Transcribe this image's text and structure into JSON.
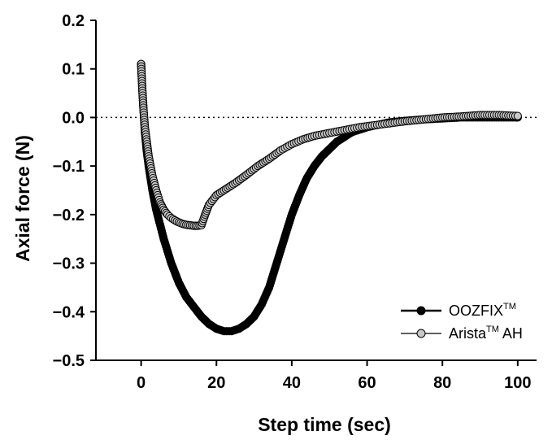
{
  "chart_data": {
    "type": "scatter",
    "title": "",
    "xlabel": "Step time (sec)",
    "ylabel": "Axial force (N)",
    "xlim": [
      -12,
      105
    ],
    "ylim": [
      -0.5,
      0.2
    ],
    "xticks": [
      0,
      20,
      40,
      60,
      80,
      100
    ],
    "yticks": [
      0.2,
      0.1,
      0.0,
      -0.1,
      -0.2,
      -0.3,
      -0.4,
      -0.5
    ],
    "xtick_labels": [
      "0",
      "20",
      "40",
      "60",
      "80",
      "100"
    ],
    "ytick_labels": [
      "0.2",
      "0.1",
      "0.0",
      "−0.1",
      "−0.2",
      "−0.3",
      "−0.4",
      "−0.5"
    ],
    "grid": false,
    "reference_line": {
      "y": 0.0,
      "style": "dotted"
    },
    "legend": {
      "placement": "bottom-right"
    },
    "series": [
      {
        "name": "OOZFIX",
        "name_sup": "TM",
        "name_suffix": "",
        "marker_fill": "#000000",
        "points": [
          [
            0,
            0.11
          ],
          [
            0.3,
            0.06
          ],
          [
            0.6,
            0.02
          ],
          [
            1,
            -0.03
          ],
          [
            1.5,
            -0.07
          ],
          [
            2,
            -0.1
          ],
          [
            3,
            -0.15
          ],
          [
            4,
            -0.19
          ],
          [
            5,
            -0.22
          ],
          [
            6,
            -0.25
          ],
          [
            8,
            -0.3
          ],
          [
            10,
            -0.34
          ],
          [
            12,
            -0.37
          ],
          [
            14,
            -0.39
          ],
          [
            16,
            -0.41
          ],
          [
            18,
            -0.425
          ],
          [
            20,
            -0.435
          ],
          [
            22,
            -0.44
          ],
          [
            24,
            -0.44
          ],
          [
            26,
            -0.435
          ],
          [
            28,
            -0.425
          ],
          [
            30,
            -0.41
          ],
          [
            32,
            -0.385
          ],
          [
            34,
            -0.35
          ],
          [
            36,
            -0.3
          ],
          [
            38,
            -0.25
          ],
          [
            40,
            -0.2
          ],
          [
            42,
            -0.16
          ],
          [
            44,
            -0.125
          ],
          [
            46,
            -0.1
          ],
          [
            48,
            -0.08
          ],
          [
            50,
            -0.065
          ],
          [
            52,
            -0.05
          ],
          [
            54,
            -0.04
          ],
          [
            56,
            -0.03
          ],
          [
            58,
            -0.025
          ],
          [
            60,
            -0.02
          ],
          [
            63,
            -0.015
          ],
          [
            66,
            -0.01
          ],
          [
            70,
            -0.007
          ],
          [
            75,
            -0.004
          ],
          [
            80,
            -0.002
          ],
          [
            85,
            0.0
          ],
          [
            90,
            0.0
          ],
          [
            95,
            0.0
          ],
          [
            100,
            0.0
          ]
        ]
      },
      {
        "name": "Arista",
        "name_sup": "TM",
        "name_suffix": " AH",
        "marker_fill": "#c8c8c8",
        "points": [
          [
            0,
            0.11
          ],
          [
            0.3,
            0.06
          ],
          [
            0.6,
            0.02
          ],
          [
            1,
            -0.02
          ],
          [
            1.5,
            -0.05
          ],
          [
            2,
            -0.08
          ],
          [
            3,
            -0.12
          ],
          [
            4,
            -0.15
          ],
          [
            5,
            -0.175
          ],
          [
            6,
            -0.19
          ],
          [
            7,
            -0.2
          ],
          [
            8,
            -0.207
          ],
          [
            9,
            -0.212
          ],
          [
            10,
            -0.216
          ],
          [
            11,
            -0.219
          ],
          [
            12,
            -0.221
          ],
          [
            13,
            -0.222
          ],
          [
            14,
            -0.223
          ],
          [
            15,
            -0.223
          ],
          [
            16,
            -0.222
          ],
          [
            17,
            -0.2
          ],
          [
            18,
            -0.18
          ],
          [
            20,
            -0.16
          ],
          [
            22,
            -0.15
          ],
          [
            25,
            -0.135
          ],
          [
            28,
            -0.118
          ],
          [
            31,
            -0.1
          ],
          [
            34,
            -0.085
          ],
          [
            37,
            -0.068
          ],
          [
            40,
            -0.055
          ],
          [
            43,
            -0.045
          ],
          [
            46,
            -0.038
          ],
          [
            50,
            -0.032
          ],
          [
            54,
            -0.026
          ],
          [
            58,
            -0.02
          ],
          [
            62,
            -0.016
          ],
          [
            66,
            -0.012
          ],
          [
            70,
            -0.008
          ],
          [
            75,
            -0.004
          ],
          [
            80,
            0.0
          ],
          [
            85,
            0.002
          ],
          [
            90,
            0.005
          ],
          [
            95,
            0.005
          ],
          [
            100,
            0.003
          ]
        ]
      }
    ]
  }
}
